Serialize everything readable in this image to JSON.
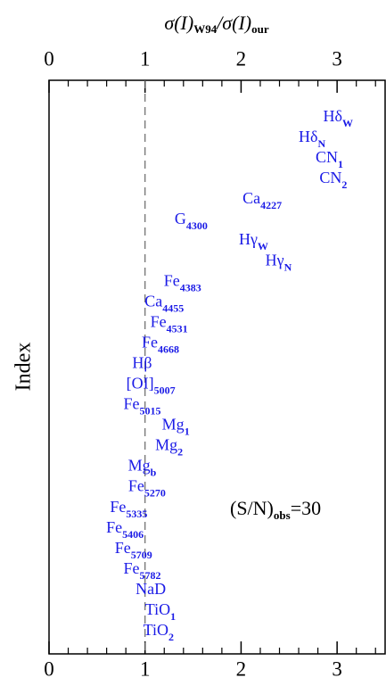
{
  "chart_data": {
    "type": "label-scatter",
    "xlabel_parts": [
      "σ(I)",
      "W94",
      "/σ(I)",
      "our"
    ],
    "ylabel": "Index",
    "xlim": [
      0,
      3.5
    ],
    "xticks": [
      0,
      1,
      2,
      3
    ],
    "xminorticks": [
      0.2,
      0.4,
      0.6,
      0.8,
      1.2,
      1.4,
      1.6,
      1.8,
      2.2,
      2.4,
      2.6,
      2.8,
      3.2,
      3.4
    ],
    "refline": 1,
    "color": "#1a1ae6",
    "categories": [
      {
        "name": "Hδ",
        "sub": "W"
      },
      {
        "name": "Hδ",
        "sub": "N"
      },
      {
        "name": "CN",
        "sub": "1"
      },
      {
        "name": "CN",
        "sub": "2"
      },
      {
        "name": "Ca",
        "sub": "4227"
      },
      {
        "name": "G",
        "sub": "4300"
      },
      {
        "name": "Hγ",
        "sub": "W"
      },
      {
        "name": "Hγ",
        "sub": "N"
      },
      {
        "name": "Fe",
        "sub": "4383"
      },
      {
        "name": "Ca",
        "sub": "4455"
      },
      {
        "name": "Fe",
        "sub": "4531"
      },
      {
        "name": "Fe",
        "sub": "4668"
      },
      {
        "name": "Hβ"
      },
      {
        "name": "[OI]",
        "sub": "5007"
      },
      {
        "name": "Fe",
        "sub": "5015"
      },
      {
        "name": "Mg",
        "sub": "1"
      },
      {
        "name": "Mg",
        "sub": "2"
      },
      {
        "name": "Mg",
        "sub": "b"
      },
      {
        "name": "Fe",
        "sub": "5270"
      },
      {
        "name": "Fe",
        "sub": "5335"
      },
      {
        "name": "Fe",
        "sub": "5406"
      },
      {
        "name": "Fe",
        "sub": "5709"
      },
      {
        "name": "Fe",
        "sub": "5782"
      },
      {
        "name": "NaD"
      },
      {
        "name": "TiO",
        "sub": "1"
      },
      {
        "name": "TiO",
        "sub": "2"
      }
    ],
    "values": [
      3.01,
      2.74,
      2.92,
      2.96,
      2.22,
      1.48,
      2.13,
      2.39,
      1.39,
      1.2,
      1.25,
      1.16,
      0.97,
      1.06,
      0.97,
      1.32,
      1.25,
      0.97,
      1.02,
      0.83,
      0.79,
      0.88,
      0.97,
      1.06,
      1.16,
      1.14
    ],
    "annotation": {
      "text": "(S/N)",
      "sub": "obs",
      "suffix": "=30"
    }
  }
}
